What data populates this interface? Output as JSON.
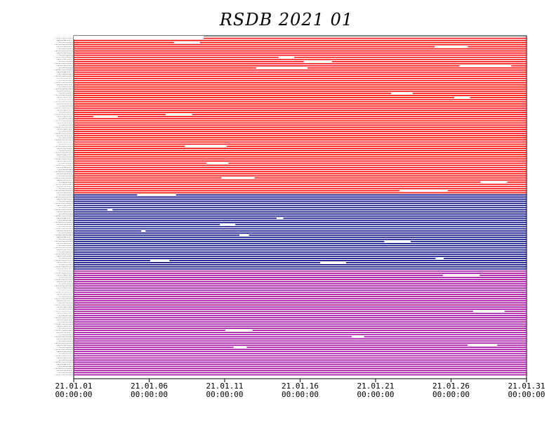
{
  "chart_data": {
    "type": "availability",
    "title": "RSDB  2021  01",
    "x_start": "2021-01-01T00:00:00",
    "x_end": "2021-01-31T00:00:00",
    "x_ticks": [
      {
        "date": "2021-01-01T00:00:00",
        "line1": "21.01.01",
        "line2": "00:00:00"
      },
      {
        "date": "2021-01-06T00:00:00",
        "line1": "21.01.06",
        "line2": "00:00:00"
      },
      {
        "date": "2021-01-11T00:00:00",
        "line1": "21.01.11",
        "line2": "00:00:00"
      },
      {
        "date": "2021-01-16T00:00:00",
        "line1": "21.01.16",
        "line2": "00:00:00"
      },
      {
        "date": "2021-01-21T00:00:00",
        "line1": "21.01.21",
        "line2": "00:00:00"
      },
      {
        "date": "2021-01-26T00:00:00",
        "line1": "21.01.26",
        "line2": "00:00:00"
      },
      {
        "date": "2021-01-31T00:00:00",
        "line1": "21.01.31",
        "line2": "00:00:00"
      }
    ],
    "groups": [
      {
        "color": "#ff0000",
        "traces": 74
      },
      {
        "color": "#000080",
        "traces": 36
      },
      {
        "color": "#a000a0",
        "traces": 50
      }
    ]
  }
}
